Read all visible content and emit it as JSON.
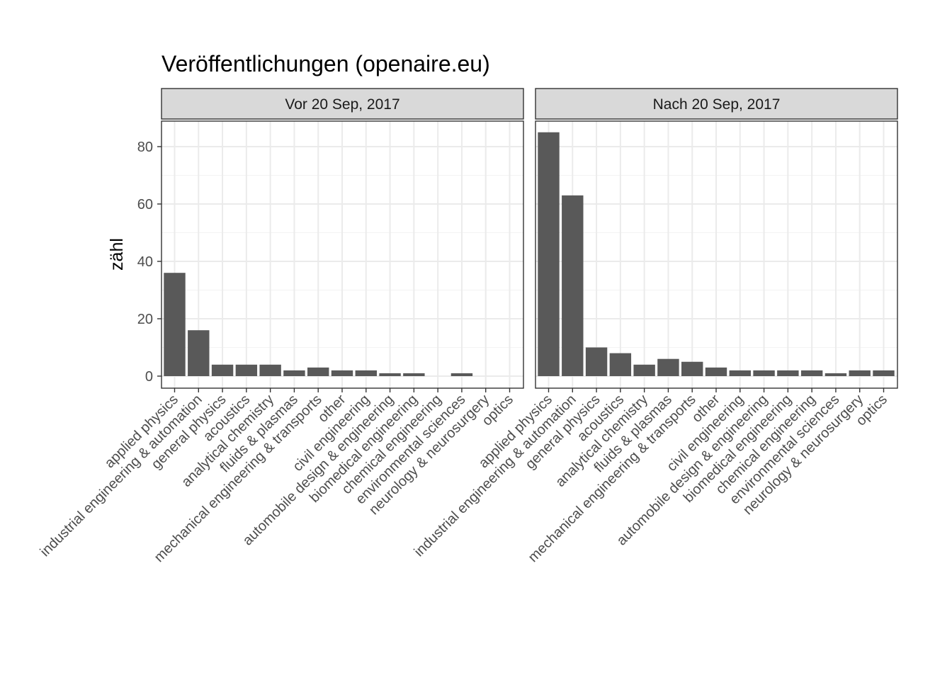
{
  "chart_data": {
    "type": "bar",
    "title": "Veröffentlichungen (openaire.eu)",
    "xlabel": "",
    "ylabel": "zähl",
    "ylim": [
      0,
      90
    ],
    "yticks": [
      0,
      20,
      40,
      60,
      80
    ],
    "grid": true,
    "categories": [
      "applied physics",
      "industrial engineering & automation",
      "general physics",
      "acoustics",
      "analytical chemistry",
      "fluids & plasmas",
      "mechanical engineering & transports",
      "other",
      "civil engineering",
      "automobile design & engineering",
      "biomedical engineering",
      "chemical engineering",
      "environmental sciences",
      "neurology & neurosurgery",
      "optics"
    ],
    "panels": [
      {
        "label": "Vor 20 Sep, 2017",
        "values": [
          36,
          16,
          4,
          4,
          4,
          2,
          3,
          2,
          2,
          1,
          1,
          0,
          1,
          0,
          0
        ]
      },
      {
        "label": "Nach 20 Sep, 2017",
        "values": [
          85,
          63,
          10,
          8,
          4,
          6,
          5,
          3,
          2,
          2,
          2,
          2,
          1,
          2,
          2
        ]
      }
    ]
  }
}
